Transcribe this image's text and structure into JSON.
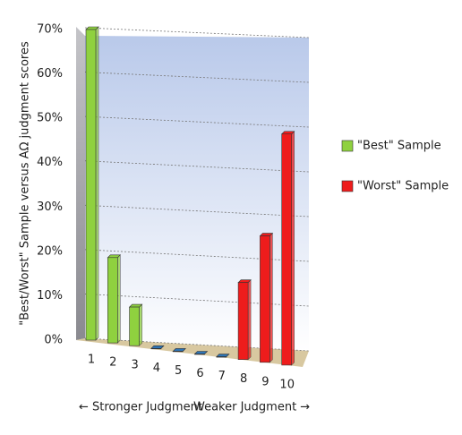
{
  "chart_data": {
    "type": "bar3d",
    "y_label": "\"Best/Worst\" Sample versus AΩ judgment scores",
    "x_left_note": "← Stronger Judgment",
    "x_right_note": "Weaker Judgment →",
    "categories": [
      "1",
      "2",
      "3",
      "4",
      "5",
      "6",
      "7",
      "8",
      "9",
      "10"
    ],
    "series": [
      {
        "name": "\"Best\" Sample",
        "color": "#8fd13f",
        "values": [
          70,
          19,
          8.5,
          0,
          0,
          0,
          0,
          null,
          null,
          null
        ]
      },
      {
        "name": "\"Worst\" Sample",
        "color": "#ee1c1c",
        "values": [
          null,
          null,
          null,
          null,
          null,
          null,
          null,
          16,
          26,
          47
        ]
      }
    ],
    "zero_color": "#2e75b6",
    "ylim": [
      0,
      70
    ],
    "yticks": [
      {
        "value": 0,
        "label": "0%"
      },
      {
        "value": 10,
        "label": "10%"
      },
      {
        "value": 20,
        "label": "20%"
      },
      {
        "value": 30,
        "label": "30%"
      },
      {
        "value": 40,
        "label": "40%"
      },
      {
        "value": 50,
        "label": "50%"
      },
      {
        "value": 60,
        "label": "60%"
      },
      {
        "value": 70,
        "label": "70%"
      }
    ],
    "grid": true
  }
}
